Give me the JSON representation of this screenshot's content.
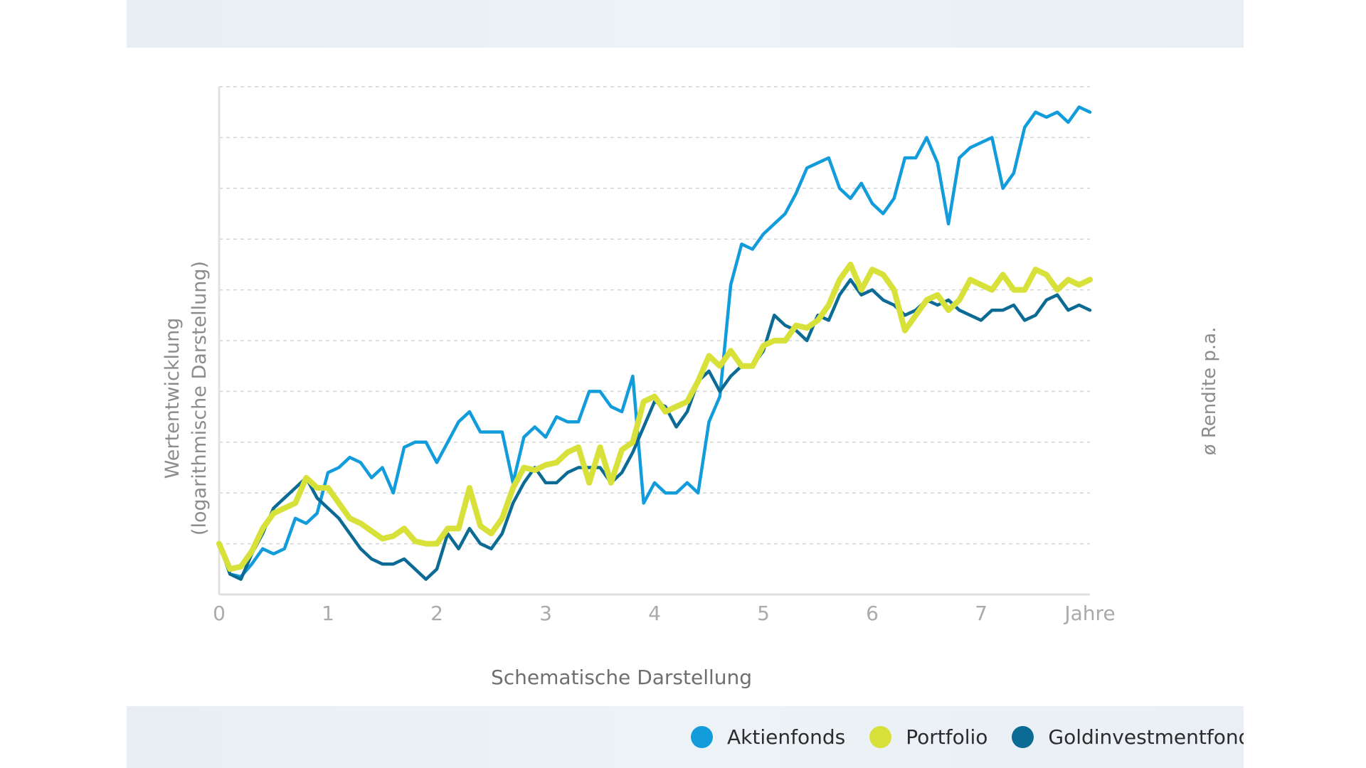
{
  "chart_data": {
    "type": "line",
    "title": "",
    "caption": "Schematische Darstellung",
    "ylabel_line1": "Wertentwicklung",
    "ylabel_line2": "(logarithmische Darstellung)",
    "right_label": "ø Rendite p.a.",
    "xlabel": "Jahre",
    "x_ticks": [
      "0",
      "1",
      "2",
      "3",
      "4",
      "5",
      "6",
      "7"
    ],
    "xlim": [
      0,
      8
    ],
    "ylim": [
      0,
      10
    ],
    "grid": true,
    "series": [
      {
        "name": "Aktienfonds",
        "color": "#129cdb",
        "x": [
          0,
          0.1,
          0.2,
          0.3,
          0.4,
          0.5,
          0.6,
          0.7,
          0.8,
          0.9,
          1.0,
          1.1,
          1.2,
          1.3,
          1.4,
          1.5,
          1.6,
          1.7,
          1.8,
          1.9,
          2.0,
          2.1,
          2.2,
          2.3,
          2.4,
          2.5,
          2.6,
          2.7,
          2.8,
          2.9,
          3.0,
          3.1,
          3.2,
          3.3,
          3.4,
          3.5,
          3.6,
          3.7,
          3.8,
          3.9,
          4.0,
          4.1,
          4.2,
          4.3,
          4.4,
          4.5,
          4.6,
          4.7,
          4.8,
          4.9,
          5.0,
          5.1,
          5.2,
          5.3,
          5.4,
          5.5,
          5.6,
          5.7,
          5.8,
          5.9,
          6.0,
          6.1,
          6.2,
          6.3,
          6.4,
          6.5,
          6.6,
          6.7,
          6.8,
          6.9,
          7.0,
          7.1,
          7.2,
          7.3,
          7.4,
          7.5,
          7.6,
          7.7,
          7.8,
          7.9,
          8.0
        ],
        "values": [
          1.0,
          0.4,
          0.35,
          0.6,
          0.9,
          0.8,
          0.9,
          1.5,
          1.4,
          1.6,
          2.4,
          2.5,
          2.7,
          2.6,
          2.3,
          2.5,
          2.0,
          2.9,
          3.0,
          3.0,
          2.6,
          3.0,
          3.4,
          3.6,
          3.2,
          3.2,
          3.2,
          2.2,
          3.1,
          3.3,
          3.1,
          3.5,
          3.4,
          3.4,
          4.0,
          4.0,
          3.7,
          3.6,
          4.3,
          1.8,
          2.2,
          2.0,
          2.0,
          2.2,
          2.0,
          3.4,
          3.9,
          6.1,
          6.9,
          6.8,
          7.1,
          7.3,
          7.5,
          7.9,
          8.4,
          8.5,
          8.6,
          8.0,
          7.8,
          8.1,
          7.7,
          7.5,
          7.8,
          8.6,
          8.6,
          9.0,
          8.5,
          7.3,
          8.6,
          8.8,
          8.9,
          9.0,
          8.0,
          8.3,
          9.2,
          9.5,
          9.4,
          9.5,
          9.3,
          9.6,
          9.5
        ]
      },
      {
        "name": "Portfolio",
        "color": "#d7e13a",
        "x": [
          0,
          0.1,
          0.2,
          0.3,
          0.4,
          0.5,
          0.6,
          0.7,
          0.8,
          0.9,
          1.0,
          1.1,
          1.2,
          1.3,
          1.4,
          1.5,
          1.6,
          1.7,
          1.8,
          1.9,
          2.0,
          2.1,
          2.2,
          2.3,
          2.4,
          2.5,
          2.6,
          2.7,
          2.8,
          2.9,
          3.0,
          3.1,
          3.2,
          3.3,
          3.4,
          3.5,
          3.6,
          3.7,
          3.8,
          3.9,
          4.0,
          4.1,
          4.2,
          4.3,
          4.4,
          4.5,
          4.6,
          4.7,
          4.8,
          4.9,
          5.0,
          5.1,
          5.2,
          5.3,
          5.4,
          5.5,
          5.6,
          5.7,
          5.8,
          5.9,
          6.0,
          6.1,
          6.2,
          6.3,
          6.4,
          6.5,
          6.6,
          6.7,
          6.8,
          6.9,
          7.0,
          7.1,
          7.2,
          7.3,
          7.4,
          7.5,
          7.6,
          7.7,
          7.8,
          7.9,
          8.0
        ],
        "values": [
          1.0,
          0.5,
          0.55,
          0.85,
          1.3,
          1.6,
          1.7,
          1.8,
          2.3,
          2.1,
          2.1,
          1.8,
          1.5,
          1.4,
          1.25,
          1.1,
          1.15,
          1.3,
          1.05,
          1.0,
          1.0,
          1.3,
          1.3,
          2.1,
          1.35,
          1.2,
          1.5,
          2.1,
          2.5,
          2.45,
          2.55,
          2.6,
          2.8,
          2.9,
          2.2,
          2.9,
          2.2,
          2.85,
          3.0,
          3.8,
          3.9,
          3.6,
          3.7,
          3.8,
          4.2,
          4.7,
          4.5,
          4.8,
          4.5,
          4.5,
          4.9,
          5.0,
          5.0,
          5.3,
          5.25,
          5.4,
          5.7,
          6.2,
          6.5,
          6.0,
          6.4,
          6.3,
          6.0,
          5.2,
          5.5,
          5.8,
          5.9,
          5.6,
          5.8,
          6.2,
          6.1,
          6.0,
          6.3,
          6.0,
          6.0,
          6.4,
          6.3,
          6.0,
          6.2,
          6.1,
          6.2
        ]
      },
      {
        "name": "Goldinvestmentfonds",
        "color": "#0b6b94",
        "x": [
          0,
          0.1,
          0.2,
          0.3,
          0.4,
          0.5,
          0.6,
          0.7,
          0.8,
          0.9,
          1.0,
          1.1,
          1.2,
          1.3,
          1.4,
          1.5,
          1.6,
          1.7,
          1.8,
          1.9,
          2.0,
          2.1,
          2.2,
          2.3,
          2.4,
          2.5,
          2.6,
          2.7,
          2.8,
          2.9,
          3.0,
          3.1,
          3.2,
          3.3,
          3.4,
          3.5,
          3.6,
          3.7,
          3.8,
          3.9,
          4.0,
          4.1,
          4.2,
          4.3,
          4.4,
          4.5,
          4.6,
          4.7,
          4.8,
          4.9,
          5.0,
          5.1,
          5.2,
          5.3,
          5.4,
          5.5,
          5.6,
          5.7,
          5.8,
          5.9,
          6.0,
          6.1,
          6.2,
          6.3,
          6.4,
          6.5,
          6.6,
          6.7,
          6.8,
          6.9,
          7.0,
          7.1,
          7.2,
          7.3,
          7.4,
          7.5,
          7.6,
          7.7,
          7.8,
          7.9,
          8.0
        ],
        "values": [
          1.0,
          0.4,
          0.3,
          0.8,
          1.2,
          1.7,
          1.9,
          2.1,
          2.3,
          1.9,
          1.7,
          1.5,
          1.2,
          0.9,
          0.7,
          0.6,
          0.6,
          0.7,
          0.5,
          0.3,
          0.5,
          1.2,
          0.9,
          1.3,
          1.0,
          0.9,
          1.2,
          1.8,
          2.2,
          2.5,
          2.2,
          2.2,
          2.4,
          2.5,
          2.5,
          2.5,
          2.2,
          2.4,
          2.8,
          3.3,
          3.8,
          3.7,
          3.3,
          3.6,
          4.2,
          4.4,
          4.0,
          4.3,
          4.5,
          4.5,
          4.8,
          5.5,
          5.3,
          5.2,
          5.0,
          5.5,
          5.4,
          5.9,
          6.2,
          5.9,
          6.0,
          5.8,
          5.7,
          5.5,
          5.6,
          5.8,
          5.7,
          5.8,
          5.6,
          5.5,
          5.4,
          5.6,
          5.6,
          5.7,
          5.4,
          5.5,
          5.8,
          5.9,
          5.6,
          5.7,
          5.6
        ]
      }
    ]
  },
  "legend": [
    {
      "label": "Aktienfonds",
      "color": "#129cdb"
    },
    {
      "label": "Portfolio",
      "color": "#d7e13a"
    },
    {
      "label": "Goldinvestmentfonds",
      "color": "#0b6b94"
    }
  ]
}
